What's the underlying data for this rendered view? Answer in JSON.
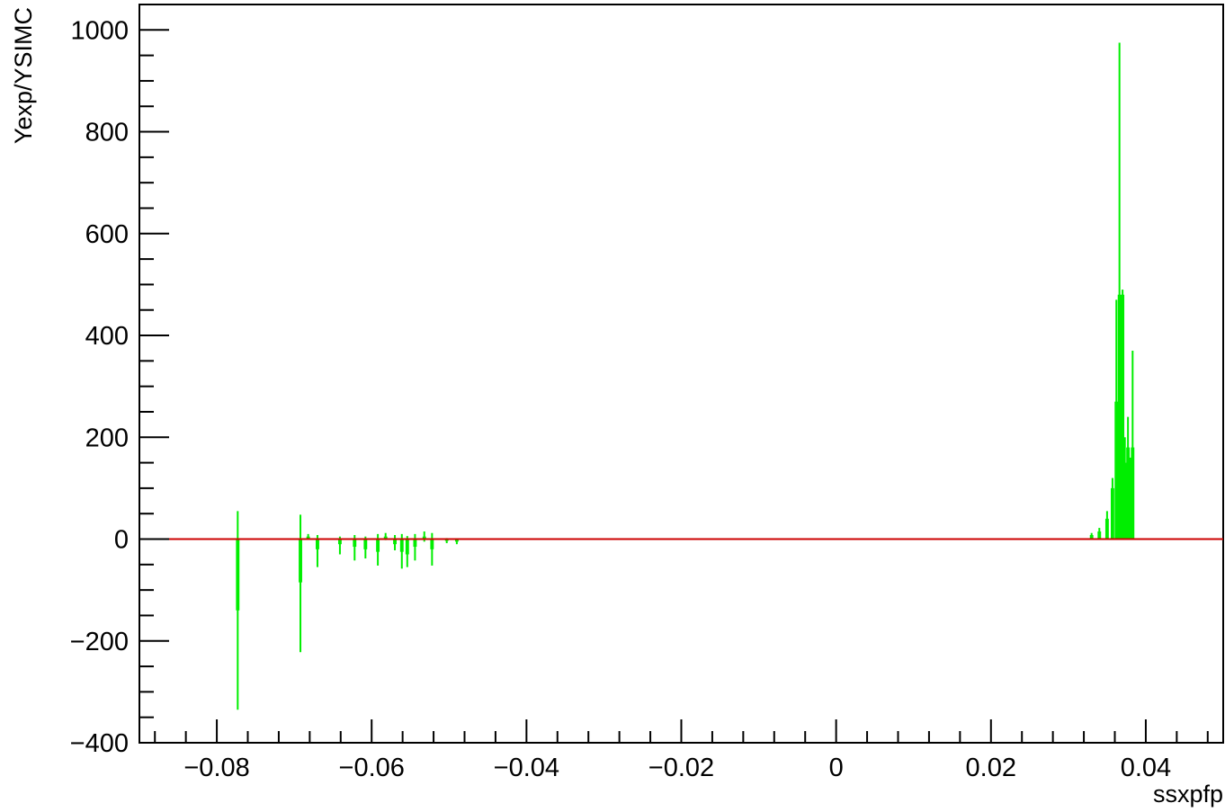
{
  "chart_data": {
    "type": "histogram",
    "title": "",
    "xlabel": "ssxpfp",
    "ylabel": "Yexp/YSIMC",
    "xlim": [
      -0.09,
      0.05
    ],
    "ylim": [
      -400,
      1050
    ],
    "x_ticks": [
      -0.08,
      -0.06,
      -0.04,
      -0.02,
      0,
      0.02,
      0.04
    ],
    "x_tick_labels": [
      "−0.08",
      "−0.06",
      "−0.04",
      "−0.02",
      "0",
      "0.02",
      "0.04"
    ],
    "y_ticks": [
      -400,
      -200,
      0,
      200,
      400,
      600,
      800,
      1000
    ],
    "y_tick_labels": [
      "−400",
      "−200",
      "0",
      "200",
      "400",
      "600",
      "800",
      "1000"
    ],
    "grid": false,
    "legend": "none",
    "colors": {
      "ratio": "#00ee00",
      "reference_line": "#cc0000"
    },
    "series": [
      {
        "style": "histogram-with-error-bars",
        "color": "#00ee00",
        "points": [
          {
            "x": -0.0773,
            "y": -140,
            "err_low": -335,
            "err_high": 55
          },
          {
            "x": -0.0692,
            "y": -85,
            "err_low": -222,
            "err_high": 48
          },
          {
            "x": -0.0682,
            "y": 5,
            "err_low": 0,
            "err_high": 10
          },
          {
            "x": -0.067,
            "y": -20,
            "err_low": -55,
            "err_high": 8
          },
          {
            "x": -0.0641,
            "y": -10,
            "err_low": -30,
            "err_high": 5
          },
          {
            "x": -0.0622,
            "y": -15,
            "err_low": -42,
            "err_high": 8
          },
          {
            "x": -0.0608,
            "y": -20,
            "err_low": -38,
            "err_high": 5
          },
          {
            "x": -0.0592,
            "y": -25,
            "err_low": -52,
            "err_high": 10
          },
          {
            "x": -0.0582,
            "y": 5,
            "err_low": -2,
            "err_high": 12
          },
          {
            "x": -0.057,
            "y": -10,
            "err_low": -22,
            "err_high": 8
          },
          {
            "x": -0.0561,
            "y": -25,
            "err_low": -58,
            "err_high": 10
          },
          {
            "x": -0.0554,
            "y": -30,
            "err_low": -55,
            "err_high": 6
          },
          {
            "x": -0.0544,
            "y": -15,
            "err_low": -42,
            "err_high": 10
          },
          {
            "x": -0.0532,
            "y": 5,
            "err_low": -5,
            "err_high": 15
          },
          {
            "x": -0.0522,
            "y": -20,
            "err_low": -52,
            "err_high": 12
          },
          {
            "x": -0.0503,
            "y": -3,
            "err_low": -8,
            "err_high": 2
          },
          {
            "x": -0.049,
            "y": -5,
            "err_low": -10,
            "err_high": 0
          },
          {
            "x": 0.033,
            "y": 8,
            "err_low": 5,
            "err_high": 12
          },
          {
            "x": 0.034,
            "y": 15,
            "err_low": 8,
            "err_high": 22
          },
          {
            "x": 0.035,
            "y": 40,
            "err_low": 25,
            "err_high": 55
          },
          {
            "x": 0.0357,
            "y": 100,
            "err_low": 80,
            "err_high": 120
          },
          {
            "x": 0.0362,
            "y": 270,
            "err_low": 250,
            "err_high": 470
          },
          {
            "x": 0.0366,
            "y": 480,
            "err_low": 0,
            "err_high": 975
          },
          {
            "x": 0.037,
            "y": 480,
            "err_low": 460,
            "err_high": 490
          },
          {
            "x": 0.0373,
            "y": 150,
            "err_low": 110,
            "err_high": 200
          },
          {
            "x": 0.0377,
            "y": 180,
            "err_low": 140,
            "err_high": 240
          },
          {
            "x": 0.038,
            "y": 130,
            "err_low": 100,
            "err_high": 160
          },
          {
            "x": 0.0383,
            "y": 180,
            "err_low": 0,
            "err_high": 370
          }
        ]
      }
    ],
    "reference_line": {
      "y": 0,
      "color": "#cc0000"
    }
  }
}
